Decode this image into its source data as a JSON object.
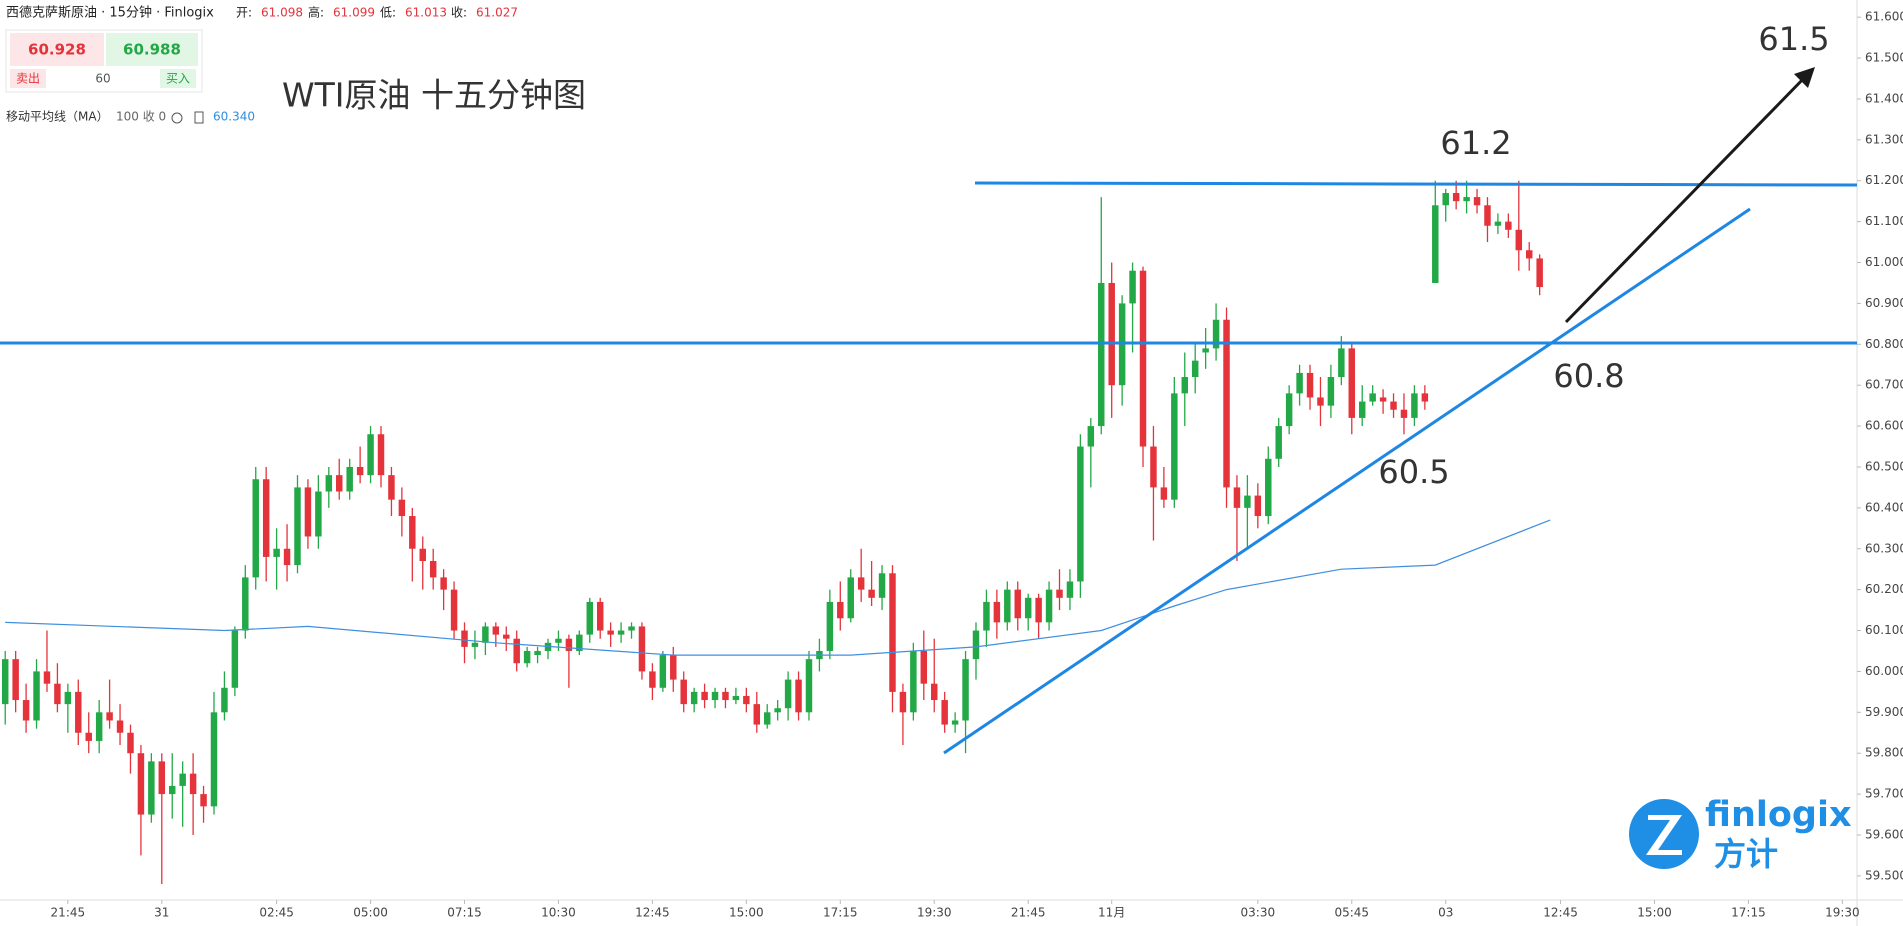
{
  "header": {
    "symbol": "西德克萨斯原油 · 15分钟 · Finlogix",
    "open_label": "开:",
    "open": 61.098,
    "high_label": "高:",
    "high": 61.099,
    "low_label": "低:",
    "low": 61.013,
    "close_label": "收:",
    "close": 61.027
  },
  "trade": {
    "sell_price": 60.928,
    "buy_price": 60.988,
    "sell_label": "卖出",
    "buy_label": "买入",
    "lot": 60
  },
  "indicator": {
    "label": "移动平均线（MA）",
    "params": "100 收 0",
    "value": "60.340"
  },
  "logo": {
    "name": "finlogix",
    "cn": "方计"
  },
  "chart_data": {
    "type": "candlestick",
    "title": "WTI原油 十五分钟图",
    "up_color": "#22a846",
    "down_color": "#e5333b",
    "ohlc": [
      [
        59.92,
        60.05,
        59.87,
        60.03
      ],
      [
        60.03,
        60.05,
        59.9,
        59.93
      ],
      [
        59.93,
        59.97,
        59.85,
        59.88
      ],
      [
        59.88,
        60.03,
        59.86,
        60.0
      ],
      [
        60.0,
        60.1,
        59.95,
        59.97
      ],
      [
        59.97,
        60.02,
        59.9,
        59.92
      ],
      [
        59.92,
        59.97,
        59.85,
        59.95
      ],
      [
        59.95,
        59.98,
        59.82,
        59.85
      ],
      [
        59.85,
        59.9,
        59.8,
        59.83
      ],
      [
        59.83,
        59.93,
        59.8,
        59.9
      ],
      [
        59.9,
        59.98,
        59.86,
        59.88
      ],
      [
        59.88,
        59.92,
        59.82,
        59.85
      ],
      [
        59.85,
        59.87,
        59.75,
        59.8
      ],
      [
        59.8,
        59.82,
        59.55,
        59.65
      ],
      [
        59.65,
        59.8,
        59.63,
        59.78
      ],
      [
        59.78,
        59.8,
        59.48,
        59.7
      ],
      [
        59.7,
        59.8,
        59.64,
        59.72
      ],
      [
        59.72,
        59.78,
        59.62,
        59.75
      ],
      [
        59.75,
        59.8,
        59.6,
        59.7
      ],
      [
        59.7,
        59.72,
        59.63,
        59.67
      ],
      [
        59.67,
        59.95,
        59.65,
        59.9
      ],
      [
        59.9,
        60.0,
        59.88,
        59.96
      ],
      [
        59.96,
        60.11,
        59.94,
        60.1
      ],
      [
        60.1,
        60.26,
        60.08,
        60.23
      ],
      [
        60.23,
        60.5,
        60.2,
        60.47
      ],
      [
        60.47,
        60.5,
        60.22,
        60.28
      ],
      [
        60.28,
        60.35,
        60.2,
        60.3
      ],
      [
        60.3,
        60.36,
        60.22,
        60.26
      ],
      [
        60.26,
        60.48,
        60.24,
        60.45
      ],
      [
        60.45,
        60.47,
        60.3,
        60.33
      ],
      [
        60.33,
        60.48,
        60.3,
        60.44
      ],
      [
        60.44,
        60.5,
        60.4,
        60.48
      ],
      [
        60.48,
        60.52,
        60.42,
        60.44
      ],
      [
        60.44,
        60.52,
        60.42,
        60.5
      ],
      [
        60.5,
        60.55,
        60.46,
        60.48
      ],
      [
        60.48,
        60.6,
        60.46,
        60.58
      ],
      [
        60.58,
        60.6,
        60.45,
        60.48
      ],
      [
        60.48,
        60.5,
        60.38,
        60.42
      ],
      [
        60.42,
        60.45,
        60.33,
        60.38
      ],
      [
        60.38,
        60.4,
        60.22,
        60.3
      ],
      [
        60.3,
        60.33,
        60.2,
        60.27
      ],
      [
        60.27,
        60.3,
        60.2,
        60.23
      ],
      [
        60.23,
        60.25,
        60.15,
        60.2
      ],
      [
        60.2,
        60.22,
        60.08,
        60.1
      ],
      [
        60.1,
        60.12,
        60.02,
        60.06
      ],
      [
        60.06,
        60.1,
        60.03,
        60.07
      ],
      [
        60.07,
        60.12,
        60.04,
        60.11
      ],
      [
        60.11,
        60.12,
        60.06,
        60.09
      ],
      [
        60.09,
        60.11,
        60.05,
        60.08
      ],
      [
        60.08,
        60.1,
        60.0,
        60.02
      ],
      [
        60.02,
        60.06,
        60.01,
        60.05
      ],
      [
        60.04,
        60.06,
        60.02,
        60.05
      ],
      [
        60.05,
        60.08,
        60.03,
        60.07
      ],
      [
        60.07,
        60.1,
        60.05,
        60.08
      ],
      [
        60.08,
        60.09,
        59.96,
        60.05
      ],
      [
        60.05,
        60.1,
        60.04,
        60.09
      ],
      [
        60.09,
        60.18,
        60.07,
        60.17
      ],
      [
        60.17,
        60.18,
        60.08,
        60.1
      ],
      [
        60.1,
        60.12,
        60.06,
        60.09
      ],
      [
        60.09,
        60.12,
        60.07,
        60.1
      ],
      [
        60.1,
        60.12,
        60.08,
        60.11
      ],
      [
        60.11,
        60.12,
        59.98,
        60.0
      ],
      [
        60.0,
        60.02,
        59.93,
        59.96
      ],
      [
        59.96,
        60.05,
        59.95,
        60.04
      ],
      [
        60.04,
        60.06,
        59.95,
        59.98
      ],
      [
        59.98,
        60.0,
        59.9,
        59.92
      ],
      [
        59.92,
        59.96,
        59.9,
        59.95
      ],
      [
        59.95,
        59.97,
        59.91,
        59.93
      ],
      [
        59.93,
        59.96,
        59.91,
        59.95
      ],
      [
        59.95,
        59.96,
        59.91,
        59.93
      ],
      [
        59.93,
        59.96,
        59.92,
        59.94
      ],
      [
        59.94,
        59.96,
        59.9,
        59.92
      ],
      [
        59.92,
        59.95,
        59.85,
        59.87
      ],
      [
        59.87,
        59.92,
        59.86,
        59.9
      ],
      [
        59.9,
        59.93,
        59.88,
        59.91
      ],
      [
        59.91,
        60.0,
        59.88,
        59.98
      ],
      [
        59.98,
        60.0,
        59.88,
        59.9
      ],
      [
        59.9,
        60.05,
        59.88,
        60.03
      ],
      [
        60.03,
        60.08,
        60.0,
        60.05
      ],
      [
        60.05,
        60.2,
        60.03,
        60.17
      ],
      [
        60.17,
        60.22,
        60.1,
        60.13
      ],
      [
        60.13,
        60.25,
        60.12,
        60.23
      ],
      [
        60.23,
        60.3,
        60.17,
        60.2
      ],
      [
        60.2,
        60.27,
        60.16,
        60.18
      ],
      [
        60.18,
        60.26,
        60.15,
        60.24
      ],
      [
        60.24,
        60.26,
        59.9,
        59.95
      ],
      [
        59.95,
        59.97,
        59.82,
        59.9
      ],
      [
        59.9,
        60.07,
        59.88,
        60.05
      ],
      [
        60.05,
        60.1,
        59.93,
        59.97
      ],
      [
        59.97,
        60.08,
        59.9,
        59.93
      ],
      [
        59.93,
        59.95,
        59.85,
        59.87
      ],
      [
        59.87,
        59.9,
        59.85,
        59.88
      ],
      [
        59.88,
        60.05,
        59.8,
        60.03
      ],
      [
        60.03,
        60.12,
        59.98,
        60.1
      ],
      [
        60.1,
        60.2,
        60.06,
        60.17
      ],
      [
        60.17,
        60.2,
        60.08,
        60.12
      ],
      [
        60.12,
        60.22,
        60.1,
        60.2
      ],
      [
        60.2,
        60.22,
        60.1,
        60.13
      ],
      [
        60.13,
        60.19,
        60.1,
        60.18
      ],
      [
        60.18,
        60.19,
        60.08,
        60.12
      ],
      [
        60.12,
        60.22,
        60.1,
        60.2
      ],
      [
        60.2,
        60.25,
        60.15,
        60.18
      ],
      [
        60.18,
        60.25,
        60.15,
        60.22
      ],
      [
        60.22,
        60.58,
        60.18,
        60.55
      ],
      [
        60.55,
        60.62,
        60.45,
        60.6
      ],
      [
        60.6,
        61.16,
        60.58,
        60.95
      ],
      [
        60.95,
        61.0,
        60.62,
        60.7
      ],
      [
        60.7,
        60.92,
        60.65,
        60.9
      ],
      [
        60.9,
        61.0,
        60.78,
        60.98
      ],
      [
        60.98,
        60.99,
        60.5,
        60.55
      ],
      [
        60.55,
        60.6,
        60.32,
        60.45
      ],
      [
        60.45,
        60.5,
        60.4,
        60.42
      ],
      [
        60.42,
        60.72,
        60.4,
        60.68
      ],
      [
        60.68,
        60.78,
        60.6,
        60.72
      ],
      [
        60.72,
        60.8,
        60.68,
        60.76
      ],
      [
        60.78,
        60.84,
        60.74,
        60.79
      ],
      [
        60.79,
        60.9,
        60.76,
        60.86
      ],
      [
        60.86,
        60.89,
        60.4,
        60.45
      ],
      [
        60.45,
        60.48,
        60.27,
        60.4
      ],
      [
        60.4,
        60.48,
        60.3,
        60.43
      ],
      [
        60.43,
        60.46,
        60.35,
        60.38
      ],
      [
        60.38,
        60.55,
        60.36,
        60.52
      ],
      [
        60.52,
        60.62,
        60.5,
        60.6
      ],
      [
        60.6,
        60.7,
        60.58,
        60.68
      ],
      [
        60.68,
        60.75,
        60.65,
        60.73
      ],
      [
        60.73,
        60.75,
        60.64,
        60.67
      ],
      [
        60.67,
        60.72,
        60.6,
        60.65
      ],
      [
        60.65,
        60.75,
        60.62,
        60.72
      ],
      [
        60.72,
        60.82,
        60.7,
        60.79
      ],
      [
        60.79,
        60.8,
        60.58,
        60.62
      ],
      [
        60.62,
        60.7,
        60.6,
        60.66
      ],
      [
        60.66,
        60.7,
        60.65,
        60.68
      ],
      [
        60.67,
        60.69,
        60.63,
        60.66
      ],
      [
        60.66,
        60.68,
        60.62,
        60.64
      ],
      [
        60.64,
        60.68,
        60.58,
        60.62
      ],
      [
        60.62,
        60.7,
        60.6,
        60.68
      ],
      [
        60.68,
        60.7,
        60.64,
        60.66
      ],
      [
        60.95,
        61.2,
        60.95,
        61.14
      ],
      [
        61.14,
        61.18,
        61.1,
        61.17
      ],
      [
        61.17,
        61.2,
        61.13,
        61.15
      ],
      [
        61.15,
        61.2,
        61.12,
        61.16
      ],
      [
        61.16,
        61.18,
        61.12,
        61.14
      ],
      [
        61.14,
        61.16,
        61.05,
        61.09
      ],
      [
        61.09,
        61.12,
        61.07,
        61.1
      ],
      [
        61.1,
        61.12,
        61.06,
        61.08
      ],
      [
        61.08,
        61.2,
        60.98,
        61.03
      ],
      [
        61.03,
        61.05,
        60.98,
        61.01
      ],
      [
        61.01,
        61.02,
        60.92,
        60.94
      ]
    ],
    "ma": {
      "color": "#3f8fe0",
      "x": [
        0,
        21,
        29,
        47,
        64,
        81,
        93,
        105,
        112,
        117,
        128,
        137,
        148
      ],
      "values": [
        60.12,
        60.1,
        60.11,
        60.07,
        60.04,
        60.04,
        60.06,
        60.1,
        60.16,
        60.2,
        60.25,
        60.26,
        60.37
      ]
    },
    "xlim": [
      -0.5,
      177.4
    ],
    "xticks": [
      {
        "value": 6,
        "label": "21:45"
      },
      {
        "value": 15,
        "label": "31"
      },
      {
        "value": 26,
        "label": "02:45"
      },
      {
        "value": 35,
        "label": "05:00"
      },
      {
        "value": 44,
        "label": "07:15"
      },
      {
        "value": 53,
        "label": "10:30"
      },
      {
        "value": 62,
        "label": "12:45"
      },
      {
        "value": 71,
        "label": "15:00"
      },
      {
        "value": 80,
        "label": "17:15"
      },
      {
        "value": 89,
        "label": "19:30"
      },
      {
        "value": 98,
        "label": "21:45"
      },
      {
        "value": 106,
        "label": "11月"
      },
      {
        "value": 120,
        "label": "03:30"
      },
      {
        "value": 129,
        "label": "05:45"
      },
      {
        "value": 138,
        "label": "03"
      },
      {
        "value": 149,
        "label": "12:45"
      },
      {
        "value": 158,
        "label": "15:00"
      },
      {
        "value": 167,
        "label": "17:15"
      },
      {
        "value": 176,
        "label": "19:30"
      }
    ],
    "ylim": [
      59.441,
      61.642
    ],
    "yticks": [
      {
        "value": 59.5,
        "label": "59.500"
      },
      {
        "value": 59.6,
        "label": "59.600"
      },
      {
        "value": 59.7,
        "label": "59.700"
      },
      {
        "value": 59.8,
        "label": "59.800"
      },
      {
        "value": 59.9,
        "label": "59.900"
      },
      {
        "value": 60.0,
        "label": "60.000"
      },
      {
        "value": 60.1,
        "label": "60.100"
      },
      {
        "value": 60.2,
        "label": "60.200"
      },
      {
        "value": 60.3,
        "label": "60.300"
      },
      {
        "value": 60.4,
        "label": "60.400"
      },
      {
        "value": 60.5,
        "label": "60.500"
      },
      {
        "value": 60.6,
        "label": "60.600"
      },
      {
        "value": 60.7,
        "label": "60.700"
      },
      {
        "value": 60.8,
        "label": "60.800"
      },
      {
        "value": 60.9,
        "label": "60.900"
      },
      {
        "value": 61.0,
        "label": "61.000"
      },
      {
        "value": 61.1,
        "label": "61.100"
      },
      {
        "value": 61.2,
        "label": "61.200"
      },
      {
        "value": 61.3,
        "label": "61.300"
      },
      {
        "value": 61.4,
        "label": "61.400"
      },
      {
        "value": 61.5,
        "label": "61.500"
      },
      {
        "value": 61.6,
        "label": "61.600"
      }
    ],
    "annotations": [
      "61.5",
      "61.2",
      "60.8",
      "60.5"
    ]
  }
}
